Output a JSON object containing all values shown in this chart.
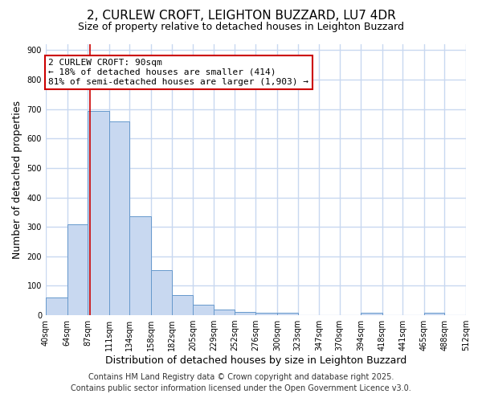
{
  "title": "2, CURLEW CROFT, LEIGHTON BUZZARD, LU7 4DR",
  "subtitle": "Size of property relative to detached houses in Leighton Buzzard",
  "xlabel": "Distribution of detached houses by size in Leighton Buzzard",
  "ylabel": "Number of detached properties",
  "bar_color": "#c8d8f0",
  "bar_edge_color": "#6699cc",
  "background_color": "#ffffff",
  "grid_color": "#c8d8f0",
  "bin_edges": [
    40,
    64,
    87,
    111,
    134,
    158,
    182,
    205,
    229,
    252,
    276,
    300,
    323,
    347,
    370,
    394,
    418,
    441,
    465,
    488,
    512
  ],
  "bar_heights": [
    60,
    310,
    693,
    658,
    336,
    153,
    68,
    35,
    18,
    12,
    8,
    8,
    0,
    0,
    0,
    8,
    0,
    0,
    8,
    0
  ],
  "red_line_x": 90,
  "annotation_line1": "2 CURLEW CROFT: 90sqm",
  "annotation_line2": "← 18% of detached houses are smaller (414)",
  "annotation_line3": "81% of semi-detached houses are larger (1,903) →",
  "annotation_box_color": "#ffffff",
  "annotation_border_color": "#cc0000",
  "ylim": [
    0,
    920
  ],
  "yticks": [
    0,
    100,
    200,
    300,
    400,
    500,
    600,
    700,
    800,
    900
  ],
  "tick_labels": [
    "40sqm",
    "64sqm",
    "87sqm",
    "111sqm",
    "134sqm",
    "158sqm",
    "182sqm",
    "205sqm",
    "229sqm",
    "252sqm",
    "276sqm",
    "300sqm",
    "323sqm",
    "347sqm",
    "370sqm",
    "394sqm",
    "418sqm",
    "441sqm",
    "465sqm",
    "488sqm",
    "512sqm"
  ],
  "footer_line1": "Contains HM Land Registry data © Crown copyright and database right 2025.",
  "footer_line2": "Contains public sector information licensed under the Open Government Licence v3.0.",
  "footer_fontsize": 7,
  "title_fontsize": 11,
  "subtitle_fontsize": 9,
  "ylabel_fontsize": 9,
  "xlabel_fontsize": 9
}
